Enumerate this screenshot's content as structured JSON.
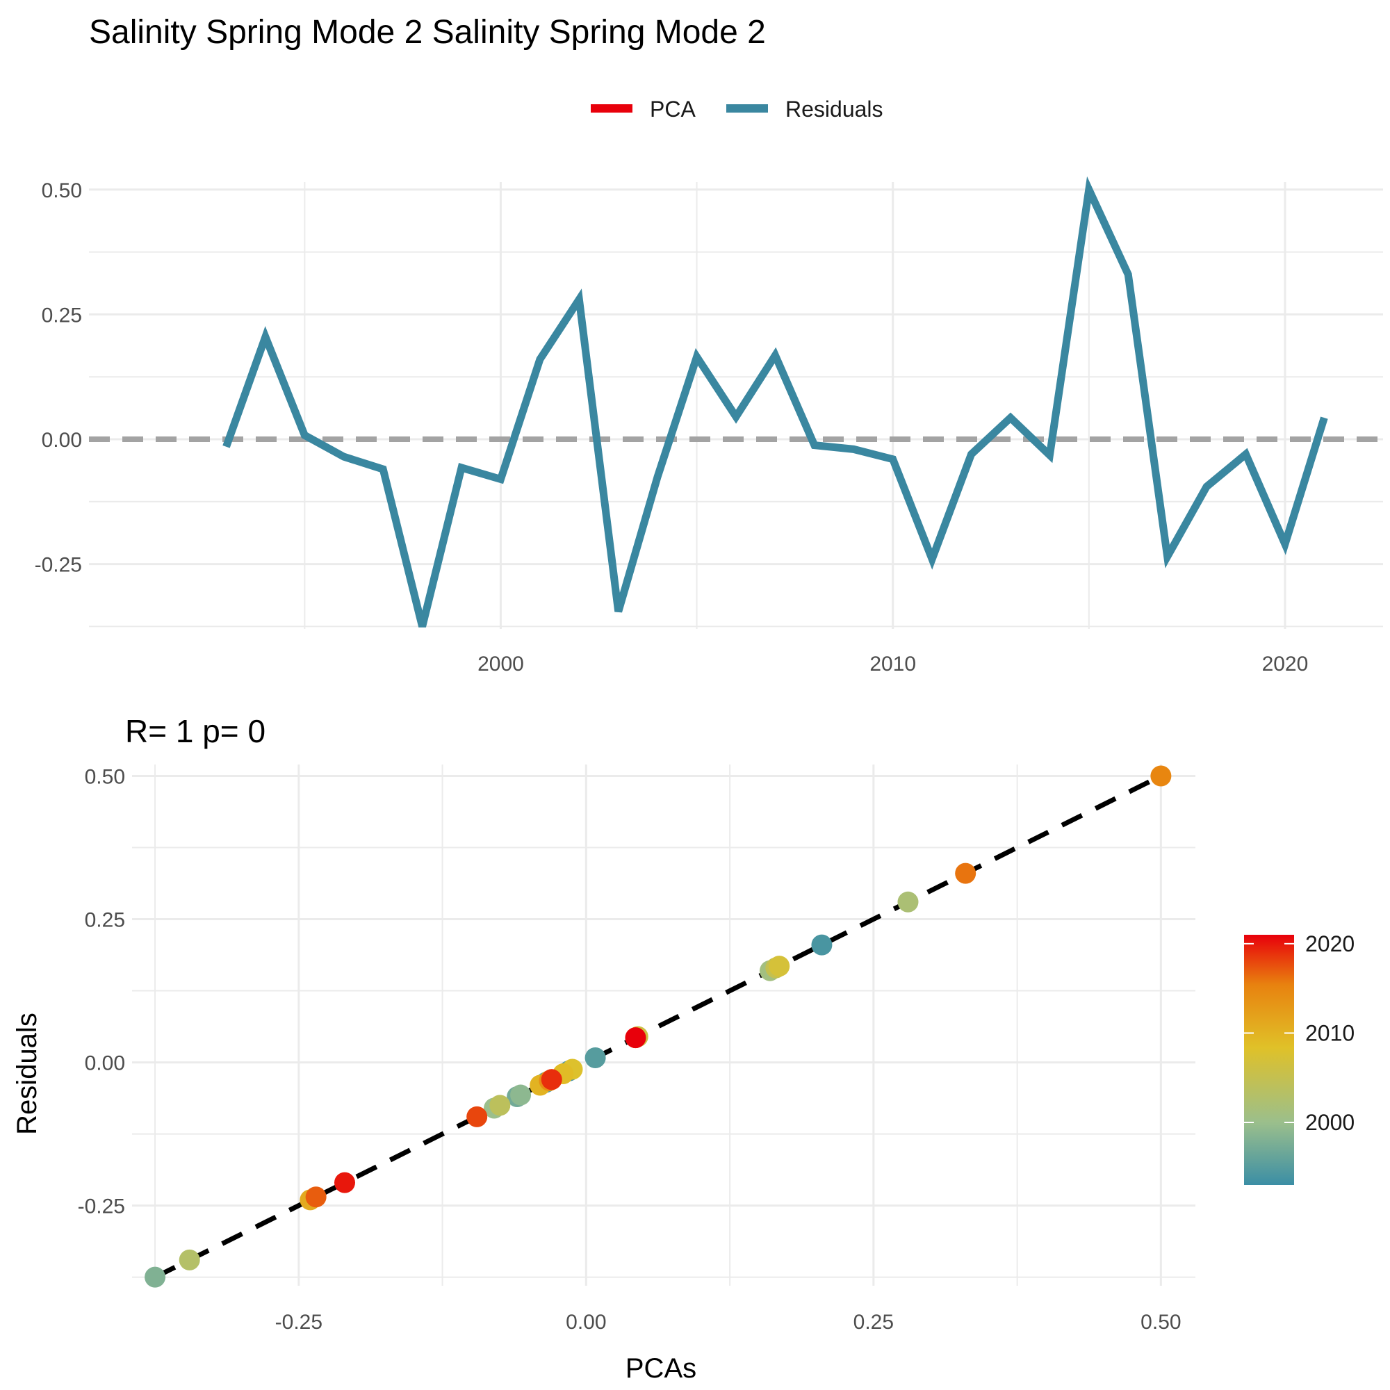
{
  "page_title": "Salinity Spring Mode 2 Salinity Spring Mode 2",
  "legend": {
    "items": [
      {
        "label": "PCA",
        "color": "#e8000b"
      },
      {
        "label": "Residuals",
        "color": "#3a87a0"
      }
    ]
  },
  "colors": {
    "residual_line": "#3a87a0",
    "zero_line": "#a3a3a3",
    "grid": "#ebebeb",
    "fit_line": "#000000",
    "colorbar_low": "#3b8ea5",
    "colorbar_mid1": "#9bbf8c",
    "colorbar_mid2": "#e0c128",
    "colorbar_mid3": "#e8820f",
    "colorbar_high": "#e8000b"
  },
  "chart_data": [
    {
      "type": "line",
      "title": "",
      "xlabel": "",
      "ylabel": "",
      "x": [
        1993,
        1994,
        1995,
        1996,
        1997,
        1998,
        1999,
        2000,
        2001,
        2002,
        2003,
        2004,
        2005,
        2006,
        2007,
        2008,
        2009,
        2010,
        2011,
        2012,
        2013,
        2014,
        2015,
        2016,
        2017,
        2018,
        2019,
        2020,
        2021
      ],
      "series": [
        {
          "name": "Residuals",
          "values": [
            -0.015,
            0.205,
            0.008,
            -0.035,
            -0.06,
            -0.375,
            -0.057,
            -0.08,
            0.16,
            0.28,
            -0.345,
            -0.075,
            0.165,
            0.045,
            0.168,
            -0.012,
            -0.02,
            -0.04,
            -0.24,
            -0.03,
            0.043,
            -0.032,
            0.5,
            0.33,
            -0.235,
            -0.095,
            -0.03,
            -0.21,
            0.043
          ]
        }
      ],
      "xlim": [
        1989.5,
        2022.5
      ],
      "ylim": [
        -0.38,
        0.515
      ],
      "x_ticks": [
        2000,
        2010,
        2020
      ],
      "x_minor_ticks": [
        1995,
        2005,
        2015
      ],
      "y_ticks": [
        -0.25,
        0.0,
        0.25,
        0.5
      ],
      "y_tick_labels": [
        "-0.25",
        "0.00",
        "0.25",
        "0.50"
      ],
      "reference_line_y": 0,
      "grid": true
    },
    {
      "type": "scatter",
      "title": "R= 1  p= 0",
      "xlabel": "PCAs",
      "ylabel": "Residuals",
      "points": [
        {
          "x": -0.015,
          "y": -0.015,
          "year": 1993
        },
        {
          "x": 0.205,
          "y": 0.205,
          "year": 1994
        },
        {
          "x": 0.008,
          "y": 0.008,
          "year": 1995
        },
        {
          "x": -0.035,
          "y": -0.035,
          "year": 1996
        },
        {
          "x": -0.06,
          "y": -0.06,
          "year": 1997
        },
        {
          "x": -0.375,
          "y": -0.375,
          "year": 1998
        },
        {
          "x": -0.057,
          "y": -0.057,
          "year": 1999
        },
        {
          "x": -0.08,
          "y": -0.08,
          "year": 2000
        },
        {
          "x": 0.16,
          "y": 0.16,
          "year": 2001
        },
        {
          "x": 0.28,
          "y": 0.28,
          "year": 2002
        },
        {
          "x": -0.345,
          "y": -0.345,
          "year": 2003
        },
        {
          "x": -0.075,
          "y": -0.075,
          "year": 2004
        },
        {
          "x": 0.165,
          "y": 0.165,
          "year": 2005
        },
        {
          "x": 0.045,
          "y": 0.045,
          "year": 2006
        },
        {
          "x": 0.168,
          "y": 0.168,
          "year": 2007
        },
        {
          "x": -0.012,
          "y": -0.012,
          "year": 2008
        },
        {
          "x": -0.02,
          "y": -0.02,
          "year": 2009
        },
        {
          "x": -0.04,
          "y": -0.04,
          "year": 2010
        },
        {
          "x": -0.24,
          "y": -0.24,
          "year": 2011
        },
        {
          "x": -0.03,
          "y": -0.03,
          "year": 2012
        },
        {
          "x": 0.043,
          "y": 0.043,
          "year": 2013
        },
        {
          "x": -0.032,
          "y": -0.032,
          "year": 2014
        },
        {
          "x": 0.5,
          "y": 0.5,
          "year": 2015
        },
        {
          "x": 0.33,
          "y": 0.33,
          "year": 2016
        },
        {
          "x": -0.235,
          "y": -0.235,
          "year": 2017
        },
        {
          "x": -0.095,
          "y": -0.095,
          "year": 2018
        },
        {
          "x": -0.03,
          "y": -0.03,
          "year": 2019
        },
        {
          "x": -0.21,
          "y": -0.21,
          "year": 2020
        },
        {
          "x": 0.043,
          "y": 0.043,
          "year": 2021
        }
      ],
      "fit_line": {
        "x": [
          -0.375,
          0.5
        ],
        "y": [
          -0.375,
          0.5
        ]
      },
      "xlim": [
        -0.395,
        0.53
      ],
      "ylim": [
        -0.39,
        0.52
      ],
      "x_ticks": [
        -0.25,
        0.0,
        0.25,
        0.5
      ],
      "x_tick_labels": [
        "-0.25",
        "0.00",
        "0.25",
        "0.50"
      ],
      "y_ticks": [
        -0.25,
        0.0,
        0.25,
        0.5
      ],
      "y_tick_labels": [
        "-0.25",
        "0.00",
        "0.25",
        "0.50"
      ],
      "grid": true,
      "colorbar": {
        "range": [
          1993,
          2021
        ],
        "ticks": [
          2000,
          2010,
          2020
        ],
        "tick_labels": [
          "2000",
          "2010",
          "2020"
        ]
      }
    }
  ]
}
